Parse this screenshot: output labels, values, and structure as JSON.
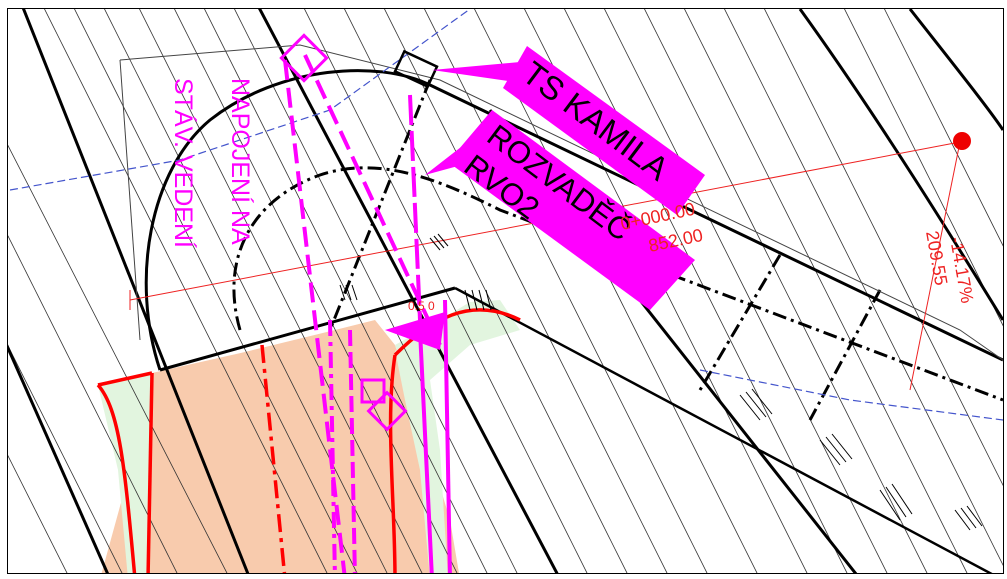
{
  "labels": {
    "ts_kamila": "TS KAMILA",
    "rozvadec_line1": "ROZVADĚČ",
    "rozvadec_line2": "RVO2",
    "napojeni_line1": "NAPOJENÍ NA",
    "napojeni_line2": "STÁV. VEDENÍ",
    "station": "0+000.00",
    "elevation": "852.00",
    "slope": "-14.17%",
    "distance": "209.55",
    "small_note": "0.5 0"
  },
  "colors": {
    "magenta": "#ff00ff",
    "red_line": "#ff0000",
    "salmon_fill": "#f8cbad",
    "green_fill": "#e2f5df",
    "annotation_red": "#ee2222",
    "blue_dashed": "#4455cc"
  }
}
